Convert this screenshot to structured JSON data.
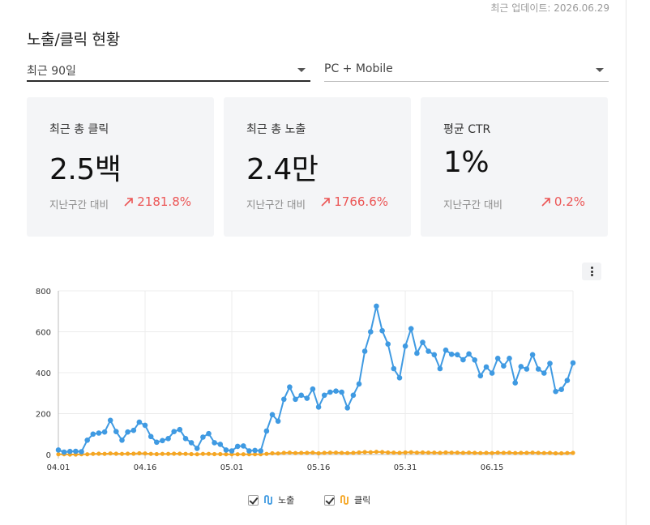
{
  "header": {
    "updated": "최근 업데이트: 2026.06.29",
    "title": "노출/클릭 현황"
  },
  "filters": {
    "period": "최근 90일",
    "device": "PC + Mobile"
  },
  "cards": [
    {
      "label": "최근 총 클릭",
      "value": "2.5백",
      "compare": "지난구간 대비",
      "delta": "2181.8%"
    },
    {
      "label": "최근 총 노출",
      "value": "2.4만",
      "compare": "지난구간 대비",
      "delta": "1766.6%"
    },
    {
      "label": "평균 CTR",
      "value": "1%",
      "compare": "지난구간 대비",
      "delta": "0.2%"
    }
  ],
  "colors": {
    "impressions": "#3f9ae2",
    "clicks": "#f5a623",
    "delta": "#ec5656",
    "grid": "#ececec"
  },
  "icons": {
    "menu": "kebab-icon",
    "delta": "trend-up-arrow-icon",
    "legend": "line-series-icon"
  },
  "chart_data": {
    "type": "line",
    "start_date": "04.01",
    "x_ticks": [
      "04.01",
      "04.16",
      "05.01",
      "05.16",
      "05.31",
      "06.15"
    ],
    "y_ticks": [
      "0",
      "200",
      "400",
      "600",
      "800"
    ],
    "ylim": [
      0,
      800
    ],
    "legend_placement": "bottom",
    "grid": true,
    "series": [
      {
        "name": "노출",
        "color": "#3f9ae2",
        "values": [
          22,
          12,
          15,
          16,
          14,
          70,
          100,
          105,
          110,
          167,
          112,
          70,
          110,
          118,
          158,
          143,
          88,
          60,
          68,
          78,
          112,
          122,
          78,
          58,
          30,
          85,
          102,
          58,
          50,
          22,
          18,
          40,
          42,
          18,
          20,
          18,
          115,
          195,
          163,
          270,
          330,
          270,
          290,
          275,
          320,
          232,
          290,
          305,
          310,
          305,
          228,
          290,
          345,
          505,
          600,
          725,
          605,
          540,
          420,
          375,
          530,
          615,
          495,
          548,
          505,
          488,
          420,
          510,
          490,
          488,
          463,
          492,
          462,
          385,
          428,
          398,
          470,
          433,
          470,
          350,
          430,
          418,
          488,
          418,
          398,
          445,
          308,
          318,
          362,
          448
        ]
      },
      {
        "name": "클릭",
        "color": "#f5a623",
        "values": [
          1,
          1,
          0,
          0,
          1,
          1,
          3,
          4,
          3,
          5,
          4,
          3,
          4,
          4,
          6,
          5,
          3,
          2,
          3,
          3,
          4,
          4,
          3,
          2,
          1,
          3,
          3,
          2,
          2,
          1,
          1,
          1,
          1,
          1,
          1,
          1,
          3,
          6,
          5,
          8,
          9,
          7,
          8,
          8,
          9,
          6,
          8,
          9,
          9,
          8,
          7,
          8,
          10,
          12,
          11,
          13,
          12,
          10,
          9,
          8,
          10,
          11,
          9,
          10,
          9,
          9,
          8,
          10,
          9,
          9,
          8,
          9,
          8,
          7,
          8,
          7,
          9,
          8,
          9,
          7,
          8,
          8,
          9,
          8,
          7,
          8,
          6,
          6,
          7,
          8
        ]
      }
    ]
  }
}
